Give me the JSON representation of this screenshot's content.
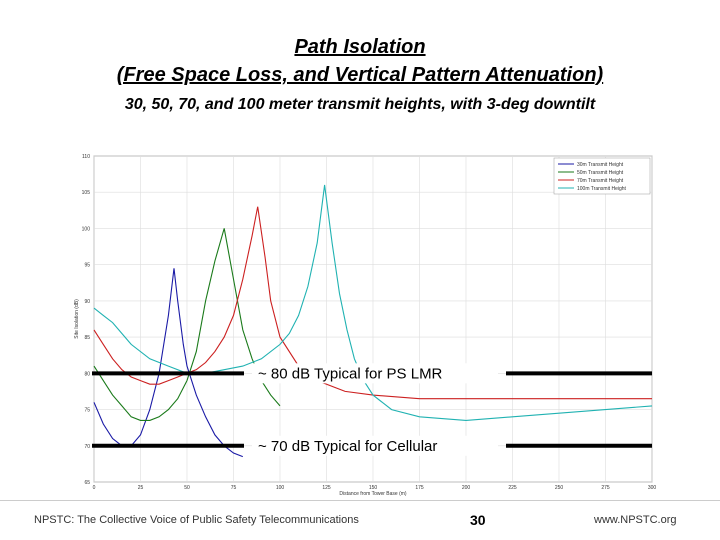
{
  "slide": {
    "title_line1": "Path Isolation",
    "title_line2": "(Free Space Loss, and Vertical Pattern Attenuation)",
    "subtitle": "30, 50, 70, and 100 meter transmit heights, with 3-deg downtilt"
  },
  "footer": {
    "left": "NPSTC:  The Collective Voice of Public Safety Telecommunications",
    "page": "30",
    "right": "www.NPSTC.org"
  },
  "chart_data": {
    "type": "line",
    "title": "",
    "xlabel": "Distance from Tower Base (m)",
    "ylabel": "Site Isolation (dB)",
    "xlim": [
      0,
      300
    ],
    "ylim": [
      65,
      110
    ],
    "xticks": [
      "0",
      "25",
      "50",
      "75",
      "100",
      "125",
      "150",
      "175",
      "200",
      "225",
      "250",
      "275",
      "300"
    ],
    "yticks": [
      "65",
      "70",
      "75",
      "80",
      "85",
      "90",
      "95",
      "100",
      "105",
      "110"
    ],
    "grid": true,
    "legend_position": "top-right",
    "series": [
      {
        "name": "30m Transmit Height",
        "color": "#1a1aa6",
        "x": [
          0,
          5,
          10,
          15,
          20,
          25,
          30,
          35,
          40,
          43,
          45,
          48,
          50,
          55,
          60,
          65,
          70,
          75,
          80
        ],
        "y": [
          76,
          73,
          71,
          70,
          70,
          71.5,
          75,
          80,
          88,
          94.5,
          90,
          84,
          81,
          77,
          74,
          71.5,
          70,
          69,
          68.5
        ]
      },
      {
        "name": "50m Transmit Height",
        "color": "#1a7a1a",
        "x": [
          0,
          5,
          10,
          15,
          20,
          25,
          30,
          35,
          40,
          45,
          50,
          55,
          60,
          65,
          70,
          75,
          80,
          85,
          90,
          95,
          100
        ],
        "y": [
          81,
          79,
          77,
          75.5,
          74,
          73.5,
          73.5,
          74,
          75,
          76.5,
          79,
          83,
          90,
          95.5,
          100,
          93,
          86,
          82,
          79,
          77,
          75.5
        ]
      },
      {
        "name": "70m Transmit Height",
        "color": "#cc2020",
        "x": [
          0,
          5,
          10,
          15,
          20,
          25,
          30,
          35,
          40,
          45,
          50,
          55,
          60,
          65,
          70,
          75,
          80,
          85,
          88,
          92,
          95,
          100,
          110,
          120,
          135,
          150,
          175,
          200,
          225,
          250,
          275,
          300
        ],
        "y": [
          86,
          84,
          82,
          80.5,
          79.5,
          79,
          78.5,
          78.5,
          79,
          79.5,
          80,
          80.5,
          81.5,
          83,
          85,
          88,
          93,
          99,
          103,
          96,
          90,
          85,
          81,
          79,
          77.5,
          77,
          76.5,
          76.5,
          76.5,
          76.5,
          76.5,
          76.5
        ]
      },
      {
        "name": "100m Transmit Height",
        "color": "#20b2b2",
        "x": [
          0,
          5,
          10,
          15,
          20,
          30,
          40,
          50,
          60,
          70,
          80,
          90,
          100,
          105,
          110,
          115,
          120,
          124,
          128,
          132,
          136,
          140,
          145,
          150,
          160,
          175,
          200,
          225,
          250,
          275,
          300
        ],
        "y": [
          89,
          88,
          87,
          85.5,
          84,
          82,
          81,
          80,
          80,
          80.5,
          81,
          82,
          84,
          85.5,
          88,
          92,
          98,
          106,
          98,
          91,
          86,
          82,
          79,
          77,
          75,
          74,
          73.5,
          74,
          74.5,
          75,
          75.5
        ]
      }
    ],
    "annotations": [
      {
        "text": "~ 80 dB Typical for PS LMR",
        "y": 80
      },
      {
        "text": "~ 70 dB Typical for Cellular",
        "y": 70
      }
    ]
  }
}
